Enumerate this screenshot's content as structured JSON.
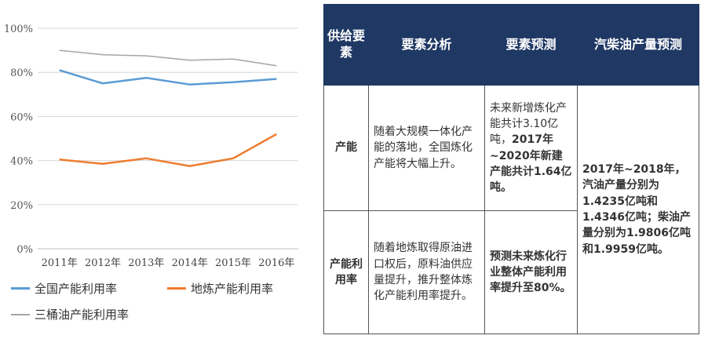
{
  "chart_data": {
    "type": "line",
    "categories": [
      "2011年",
      "2012年",
      "2013年",
      "2014年",
      "2015年",
      "2016年"
    ],
    "ylim": [
      0,
      100
    ],
    "yticks": [
      "0%",
      "20%",
      "40%",
      "60%",
      "80%",
      "100%"
    ],
    "grid": true,
    "legend_position": "bottom",
    "series": [
      {
        "name": "全国产能利用率",
        "color": "#5b9bd5",
        "values": [
          81,
          75,
          77.5,
          74.5,
          75.5,
          77
        ]
      },
      {
        "name": "地炼产能利用率",
        "color": "#ed7d31",
        "values": [
          40.5,
          38.5,
          41,
          37.5,
          41,
          52
        ]
      },
      {
        "name": "三桶油产能利用率",
        "color": "#a5a5a5",
        "values": [
          90,
          88,
          87.5,
          85.5,
          86,
          83
        ]
      }
    ]
  },
  "table": {
    "headers": [
      "供给要素",
      "要素分析",
      "要素预测",
      "汽柴油产量预测"
    ],
    "rows": [
      {
        "factor": "产能",
        "analysis": "随着大规模一体化产能的落地，全国炼化产能将大幅上升。",
        "forecast_plain": "未来新增炼化产能共计3.10亿吨，",
        "forecast_bold": "2017年~2020年新建产能共计1.64亿吨。"
      },
      {
        "factor": "产能利用率",
        "analysis": "随着地炼取得原油进口权后，原料油供应量提升，推升整体炼化产能利用率提升。",
        "forecast_bold": "预测未来炼化行业整体产能利用率提升至80%。"
      }
    ],
    "output_forecast": "2017年~2018年，汽油产量分别为1.4235亿吨和1.4346亿吨；柴油产量分别为1.9806亿吨和1.9959亿吨。"
  }
}
